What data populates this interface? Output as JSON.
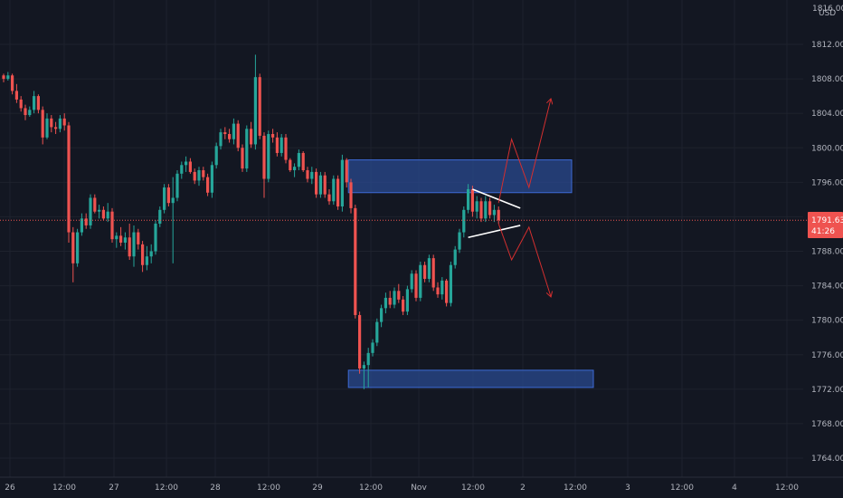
{
  "chart_data": {
    "type": "candlestick",
    "currency": "USD",
    "ylim": [
      1762,
      1816
    ],
    "y_ticks": [
      "1812.000",
      "1808.000",
      "1804.000",
      "1800.000",
      "1796.000",
      "1792.000",
      "1788.000",
      "1784.000",
      "1780.000",
      "1776.000",
      "1772.000",
      "1768.000",
      "1764.000"
    ],
    "y_tick_values": [
      1812,
      1808,
      1804,
      1800,
      1796,
      1792,
      1788,
      1784,
      1780,
      1776,
      1772,
      1768,
      1764
    ],
    "top_partial_label": "1816.000",
    "x_ticks": [
      "26",
      "12:00",
      "27",
      "12:00",
      "28",
      "12:00",
      "29",
      "12:00",
      "Nov",
      "12:00",
      "2",
      "12:00",
      "3",
      "12:00",
      "4",
      "12:00"
    ],
    "current_price": {
      "label": "1791.635",
      "timer": "41:26",
      "value": 1791.6
    },
    "colors": {
      "up": "#26a69a",
      "down": "#ef5350",
      "zone": "#2a4a8f",
      "zone_border": "#3d6ad6",
      "projection": "#d32f2f",
      "triangle": "#ffffff",
      "price_line": "#ef5350"
    },
    "candles": [
      [
        1808.4,
        1808.6,
        1807.6,
        1808.0
      ],
      [
        1808.0,
        1808.8,
        1807.8,
        1808.4
      ],
      [
        1808.4,
        1808.6,
        1806.2,
        1806.6
      ],
      [
        1806.6,
        1807.4,
        1805.2,
        1805.6
      ],
      [
        1805.6,
        1806.0,
        1804.2,
        1804.6
      ],
      [
        1804.6,
        1805.0,
        1803.2,
        1803.8
      ],
      [
        1803.8,
        1804.8,
        1803.6,
        1804.4
      ],
      [
        1804.4,
        1806.6,
        1804.0,
        1806.0
      ],
      [
        1806.0,
        1806.2,
        1804.0,
        1804.4
      ],
      [
        1804.4,
        1804.8,
        1800.4,
        1801.2
      ],
      [
        1801.2,
        1804.0,
        1801.0,
        1803.4
      ],
      [
        1803.4,
        1803.8,
        1801.8,
        1802.4
      ],
      [
        1802.4,
        1803.0,
        1801.6,
        1802.2
      ],
      [
        1802.2,
        1803.8,
        1801.8,
        1803.4
      ],
      [
        1803.4,
        1804.0,
        1802.0,
        1802.6
      ],
      [
        1802.6,
        1803.0,
        1789.0,
        1790.2
      ],
      [
        1790.2,
        1790.8,
        1784.4,
        1786.6
      ],
      [
        1786.6,
        1790.6,
        1786.2,
        1790.2
      ],
      [
        1790.2,
        1792.4,
        1789.8,
        1791.8
      ],
      [
        1791.8,
        1792.4,
        1790.6,
        1791.0
      ],
      [
        1791.0,
        1794.6,
        1790.6,
        1794.2
      ],
      [
        1794.2,
        1794.6,
        1792.4,
        1792.6
      ],
      [
        1792.6,
        1793.4,
        1791.8,
        1792.8
      ],
      [
        1792.8,
        1793.2,
        1791.6,
        1791.8
      ],
      [
        1791.8,
        1793.6,
        1791.4,
        1792.6
      ],
      [
        1792.6,
        1793.0,
        1789.0,
        1789.4
      ],
      [
        1789.4,
        1790.2,
        1788.4,
        1789.8
      ],
      [
        1789.8,
        1790.8,
        1788.6,
        1789.0
      ],
      [
        1789.0,
        1790.2,
        1788.2,
        1789.6
      ],
      [
        1789.6,
        1791.2,
        1787.0,
        1787.4
      ],
      [
        1787.4,
        1791.0,
        1786.2,
        1790.2
      ],
      [
        1790.2,
        1790.6,
        1788.2,
        1788.8
      ],
      [
        1788.8,
        1789.2,
        1785.6,
        1786.4
      ],
      [
        1786.4,
        1788.6,
        1785.8,
        1787.4
      ],
      [
        1787.4,
        1788.8,
        1786.6,
        1788.0
      ],
      [
        1788.0,
        1791.6,
        1787.6,
        1791.2
      ],
      [
        1791.2,
        1793.2,
        1790.8,
        1792.8
      ],
      [
        1792.8,
        1795.8,
        1792.4,
        1795.4
      ],
      [
        1795.4,
        1795.8,
        1793.2,
        1793.6
      ],
      [
        1793.6,
        1796.6,
        1786.6,
        1794.2
      ],
      [
        1794.2,
        1797.4,
        1793.8,
        1797.0
      ],
      [
        1797.0,
        1798.4,
        1796.4,
        1798.0
      ],
      [
        1798.0,
        1799.0,
        1797.2,
        1798.4
      ],
      [
        1798.4,
        1798.8,
        1797.0,
        1797.2
      ],
      [
        1797.2,
        1797.6,
        1795.8,
        1796.2
      ],
      [
        1796.2,
        1797.8,
        1795.6,
        1797.4
      ],
      [
        1797.4,
        1797.8,
        1796.2,
        1796.6
      ],
      [
        1796.6,
        1797.0,
        1794.4,
        1794.8
      ],
      [
        1794.8,
        1798.4,
        1794.2,
        1798.0
      ],
      [
        1798.0,
        1800.6,
        1797.6,
        1800.2
      ],
      [
        1800.2,
        1802.2,
        1799.8,
        1801.8
      ],
      [
        1801.8,
        1802.4,
        1801.0,
        1801.6
      ],
      [
        1801.6,
        1802.2,
        1800.6,
        1801.0
      ],
      [
        1801.0,
        1803.4,
        1800.4,
        1802.8
      ],
      [
        1802.8,
        1803.2,
        1799.6,
        1800.0
      ],
      [
        1800.0,
        1800.4,
        1797.2,
        1797.6
      ],
      [
        1797.6,
        1802.6,
        1797.2,
        1802.2
      ],
      [
        1802.2,
        1803.0,
        1800.0,
        1800.4
      ],
      [
        1800.4,
        1810.8,
        1799.8,
        1808.2
      ],
      [
        1808.2,
        1808.6,
        1801.0,
        1801.4
      ],
      [
        1801.4,
        1801.8,
        1794.2,
        1796.4
      ],
      [
        1796.4,
        1802.0,
        1796.0,
        1801.6
      ],
      [
        1801.6,
        1802.2,
        1800.6,
        1801.2
      ],
      [
        1801.2,
        1801.8,
        1799.0,
        1799.4
      ],
      [
        1799.4,
        1801.6,
        1799.0,
        1801.2
      ],
      [
        1801.2,
        1801.6,
        1798.2,
        1798.6
      ],
      [
        1798.6,
        1798.8,
        1797.2,
        1797.4
      ],
      [
        1797.4,
        1798.2,
        1796.6,
        1797.8
      ],
      [
        1797.8,
        1799.8,
        1797.4,
        1799.4
      ],
      [
        1799.4,
        1799.6,
        1797.2,
        1797.4
      ],
      [
        1797.4,
        1797.8,
        1796.0,
        1796.4
      ],
      [
        1796.4,
        1797.8,
        1795.8,
        1797.2
      ],
      [
        1797.2,
        1797.6,
        1794.2,
        1794.6
      ],
      [
        1794.6,
        1797.2,
        1794.2,
        1796.8
      ],
      [
        1796.8,
        1797.2,
        1794.2,
        1794.6
      ],
      [
        1794.6,
        1795.2,
        1793.4,
        1793.8
      ],
      [
        1793.8,
        1796.8,
        1793.4,
        1796.4
      ],
      [
        1796.4,
        1796.8,
        1792.8,
        1793.2
      ],
      [
        1793.2,
        1799.2,
        1792.6,
        1798.6
      ],
      [
        1798.6,
        1798.8,
        1795.4,
        1796.0
      ],
      [
        1796.0,
        1796.4,
        1792.4,
        1793.0
      ],
      [
        1793.0,
        1793.4,
        1780.2,
        1780.6
      ],
      [
        1780.6,
        1781.0,
        1773.8,
        1774.4
      ],
      [
        1774.4,
        1775.2,
        1772.0,
        1774.8
      ],
      [
        1774.8,
        1776.8,
        1772.2,
        1776.2
      ],
      [
        1776.2,
        1777.8,
        1775.8,
        1777.4
      ],
      [
        1777.4,
        1780.2,
        1777.0,
        1779.8
      ],
      [
        1779.8,
        1781.8,
        1779.2,
        1781.4
      ],
      [
        1781.4,
        1783.2,
        1780.8,
        1782.6
      ],
      [
        1782.6,
        1783.4,
        1781.4,
        1781.8
      ],
      [
        1781.8,
        1783.8,
        1781.4,
        1783.4
      ],
      [
        1783.4,
        1784.2,
        1782.0,
        1782.4
      ],
      [
        1782.4,
        1782.8,
        1780.6,
        1781.0
      ],
      [
        1781.0,
        1784.0,
        1780.6,
        1783.6
      ],
      [
        1783.6,
        1785.8,
        1783.2,
        1785.4
      ],
      [
        1785.4,
        1785.8,
        1782.2,
        1782.6
      ],
      [
        1782.6,
        1786.8,
        1782.2,
        1786.4
      ],
      [
        1786.4,
        1786.8,
        1784.4,
        1784.8
      ],
      [
        1784.8,
        1787.6,
        1784.4,
        1787.2
      ],
      [
        1787.2,
        1787.6,
        1783.4,
        1783.8
      ],
      [
        1783.8,
        1784.4,
        1782.6,
        1783.0
      ],
      [
        1783.0,
        1785.0,
        1782.4,
        1784.6
      ],
      [
        1784.6,
        1784.8,
        1781.6,
        1782.0
      ],
      [
        1782.0,
        1786.8,
        1781.6,
        1786.4
      ],
      [
        1786.4,
        1788.6,
        1786.0,
        1788.2
      ],
      [
        1788.2,
        1790.6,
        1787.8,
        1790.2
      ],
      [
        1790.2,
        1793.2,
        1789.6,
        1792.8
      ],
      [
        1792.8,
        1795.8,
        1792.4,
        1795.2
      ],
      [
        1795.2,
        1795.6,
        1792.0,
        1792.6
      ],
      [
        1792.6,
        1794.4,
        1791.8,
        1793.8
      ],
      [
        1793.8,
        1794.2,
        1791.4,
        1791.8
      ],
      [
        1791.8,
        1794.4,
        1791.4,
        1793.8
      ],
      [
        1793.8,
        1794.2,
        1791.8,
        1792.2
      ],
      [
        1792.2,
        1793.4,
        1791.4,
        1792.8
      ],
      [
        1792.8,
        1793.2,
        1791.2,
        1791.6
      ]
    ],
    "zones": [
      {
        "from_index": 79,
        "to_index": 130,
        "top": 1798.6,
        "bottom": 1794.8
      },
      {
        "from_index": 79,
        "to_index": 135,
        "top": 1774.2,
        "bottom": 1772.2
      }
    ],
    "triangle": [
      {
        "from": [
          108,
          1795.2
        ],
        "to": [
          119,
          1793.0
        ]
      },
      {
        "from": [
          107,
          1789.6
        ],
        "to": [
          119,
          1791.0
        ]
      }
    ],
    "projection_up": [
      [
        114,
        1793.6
      ],
      [
        117,
        1801.0
      ],
      [
        121,
        1795.4
      ],
      [
        126,
        1805.6
      ]
    ],
    "projection_down": [
      [
        114,
        1791.2
      ],
      [
        117,
        1787.0
      ],
      [
        121,
        1790.8
      ],
      [
        126,
        1782.8
      ]
    ]
  }
}
